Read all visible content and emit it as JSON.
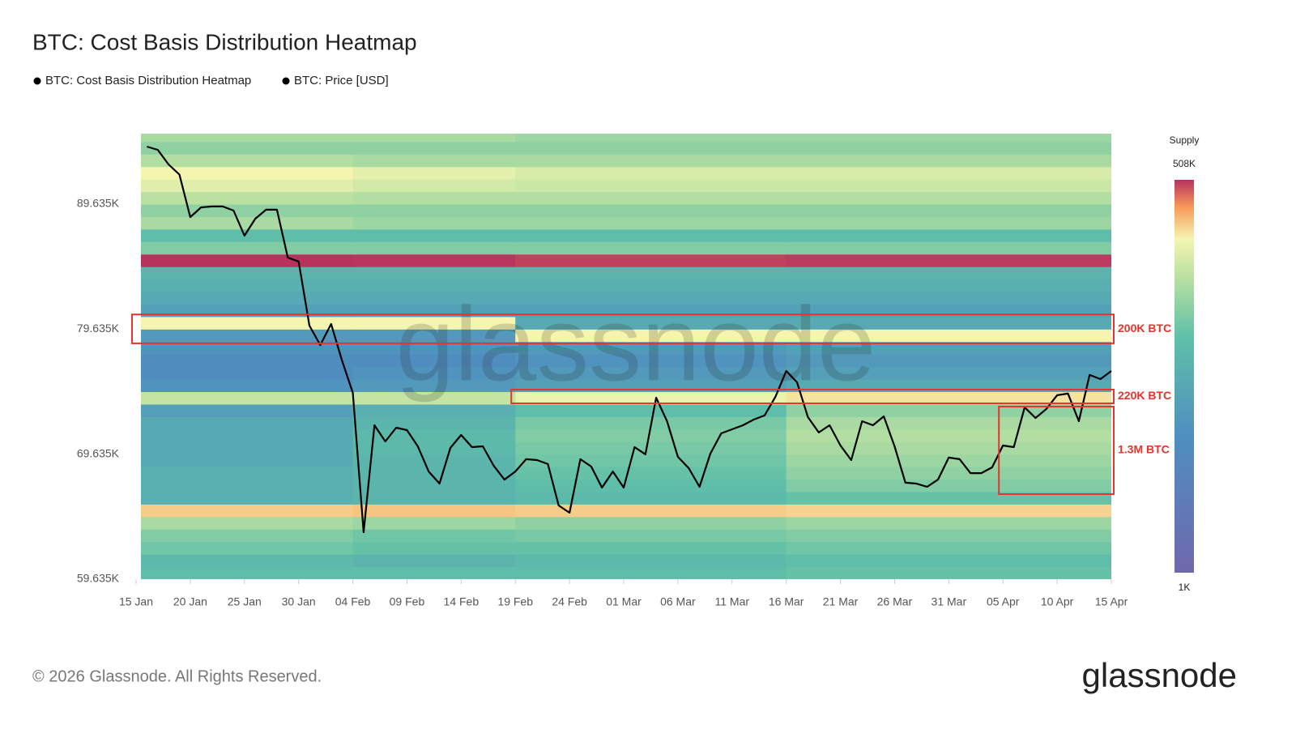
{
  "chart_data": {
    "type": "heatmap",
    "title": "BTC: Cost Basis Distribution Heatmap",
    "categories": [
      "15 Jan",
      null,
      null,
      null,
      null,
      "20 Jan",
      null,
      null,
      null,
      null,
      "25 Jan",
      null,
      null,
      null,
      null,
      "30 Jan",
      null,
      null,
      null,
      null,
      "04 Feb",
      null,
      null,
      null,
      null,
      "09 Feb",
      null,
      null,
      null,
      null,
      "14 Feb",
      null,
      null,
      null,
      null,
      "19 Feb",
      null,
      null,
      null,
      null,
      "24 Feb",
      null,
      null,
      null,
      null,
      "01 Mar",
      null,
      null,
      null,
      null,
      "06 Mar",
      null,
      null,
      null,
      null,
      "11 Mar",
      null,
      null,
      null,
      null,
      "16 Mar",
      null,
      null,
      null,
      null,
      "21 Mar",
      null,
      null,
      null,
      null,
      "26 Mar",
      null,
      null,
      null,
      null,
      "31 Mar",
      null,
      null,
      null,
      null,
      "05 Apr",
      null,
      null,
      null,
      null,
      "10 Apr",
      null,
      null,
      null,
      null,
      "15 Apr"
    ],
    "series": [
      {
        "name": "BTC: Price [USD]",
        "color": "#000000",
        "values": [
          null,
          94240,
          93980,
          92810,
          92000,
          88600,
          89380,
          89450,
          89450,
          89120,
          87110,
          88470,
          89190,
          89190,
          85360,
          85040,
          79920,
          78360,
          80050,
          77130,
          74540,
          63390,
          71950,
          70650,
          71750,
          71560,
          70260,
          68250,
          67280,
          70130,
          71170,
          70200,
          70260,
          68710,
          67600,
          68250,
          69230,
          69160,
          68840,
          65530,
          64950,
          69230,
          68640,
          66960,
          68250,
          66960,
          70200,
          69620,
          74150,
          72270,
          69420,
          68510,
          67020,
          69680,
          71300,
          71620,
          71950,
          72400,
          72730,
          74220,
          76290,
          75380,
          72600,
          71370,
          71950,
          70330,
          69160,
          72270,
          71950,
          72660,
          70260,
          67350,
          67280,
          67020,
          67600,
          69360,
          69230,
          68120,
          68120,
          68580,
          70330,
          70200,
          73380,
          72530,
          73240,
          74350,
          74480,
          72270,
          75970,
          75640,
          76290
        ]
      }
    ],
    "heatmap": {
      "name": "BTC: Cost Basis Distribution Heatmap",
      "price_edges": [
        59635,
        60635,
        61635,
        62635,
        63635,
        64635,
        65635,
        66635,
        67635,
        68635,
        69635,
        70635,
        71635,
        72635,
        73635,
        74635,
        75635,
        76635,
        77635,
        78635,
        79635,
        80635,
        81635,
        82635,
        83635,
        84635,
        85635,
        86635,
        87635,
        88635,
        89635,
        90635,
        91635,
        92635,
        93635,
        94635,
        95275
      ],
      "time_edges": [
        "15 Jan",
        "04 Feb",
        "19 Feb",
        "16 Mar",
        "15 Apr"
      ],
      "supply": [
        [
          40000,
          40000,
          40000,
          45000
        ],
        [
          35000,
          30000,
          35000,
          40000
        ],
        [
          50000,
          45000,
          45000,
          50000
        ],
        [
          60000,
          50000,
          55000,
          60000
        ],
        [
          90000,
          80000,
          70000,
          80000
        ],
        [
          250000,
          260000,
          250000,
          240000
        ],
        [
          25000,
          30000,
          35000,
          45000
        ],
        [
          25000,
          30000,
          40000,
          60000
        ],
        [
          25000,
          30000,
          45000,
          70000
        ],
        [
          20000,
          30000,
          50000,
          80000
        ],
        [
          20000,
          35000,
          55000,
          90000
        ],
        [
          20000,
          35000,
          60000,
          100000
        ],
        [
          20000,
          30000,
          55000,
          90000
        ],
        [
          15000,
          25000,
          40000,
          70000
        ],
        [
          120000,
          120000,
          180000,
          220000
        ],
        [
          10000,
          12000,
          15000,
          20000
        ],
        [
          8000,
          10000,
          12000,
          15000
        ],
        [
          8000,
          8000,
          10000,
          12000
        ],
        [
          10000,
          10000,
          12000,
          15000
        ],
        [
          12000,
          12000,
          200000,
          200000
        ],
        [
          200000,
          200000,
          20000,
          20000
        ],
        [
          15000,
          15000,
          15000,
          15000
        ],
        [
          20000,
          20000,
          20000,
          20000
        ],
        [
          25000,
          25000,
          25000,
          25000
        ],
        [
          30000,
          30000,
          30000,
          30000
        ],
        [
          508000,
          500000,
          480000,
          490000
        ],
        [
          60000,
          60000,
          60000,
          60000
        ],
        [
          40000,
          40000,
          40000,
          40000
        ],
        [
          90000,
          80000,
          80000,
          80000
        ],
        [
          70000,
          70000,
          70000,
          70000
        ],
        [
          110000,
          100000,
          100000,
          100000
        ],
        [
          160000,
          140000,
          130000,
          130000
        ],
        [
          200000,
          170000,
          150000,
          150000
        ],
        [
          100000,
          90000,
          90000,
          90000
        ],
        [
          70000,
          70000,
          70000,
          70000
        ],
        [
          90000,
          90000,
          80000,
          80000
        ]
      ]
    },
    "ylim": [
      59635,
      95275
    ],
    "yticks": [
      {
        "value": 59635,
        "label": "59.635K"
      },
      {
        "value": 69635,
        "label": "69.635K"
      },
      {
        "value": 79635,
        "label": "79.635K"
      },
      {
        "value": 89635,
        "label": "89.635K"
      }
    ],
    "colorbar": {
      "title": "Supply",
      "max": {
        "value": 508000,
        "label": "508K"
      },
      "min": {
        "value": 1000,
        "label": "1K"
      }
    },
    "annotations": [
      {
        "label": "200K BTC",
        "x": [
          "15 Jan",
          "15 Apr"
        ],
        "y": [
          78500,
          80810
        ]
      },
      {
        "label": "220K BTC",
        "x": [
          "19 Feb",
          "15 Apr"
        ],
        "y": [
          73700,
          74800
        ]
      },
      {
        "label": "1.3M BTC",
        "x": [
          "05 Apr",
          "15 Apr"
        ],
        "y": [
          66440,
          73440
        ]
      }
    ],
    "watermark": "glassnode",
    "footer": "© 2026 Glassnode. All Rights Reserved.",
    "logo": "glassnode"
  }
}
